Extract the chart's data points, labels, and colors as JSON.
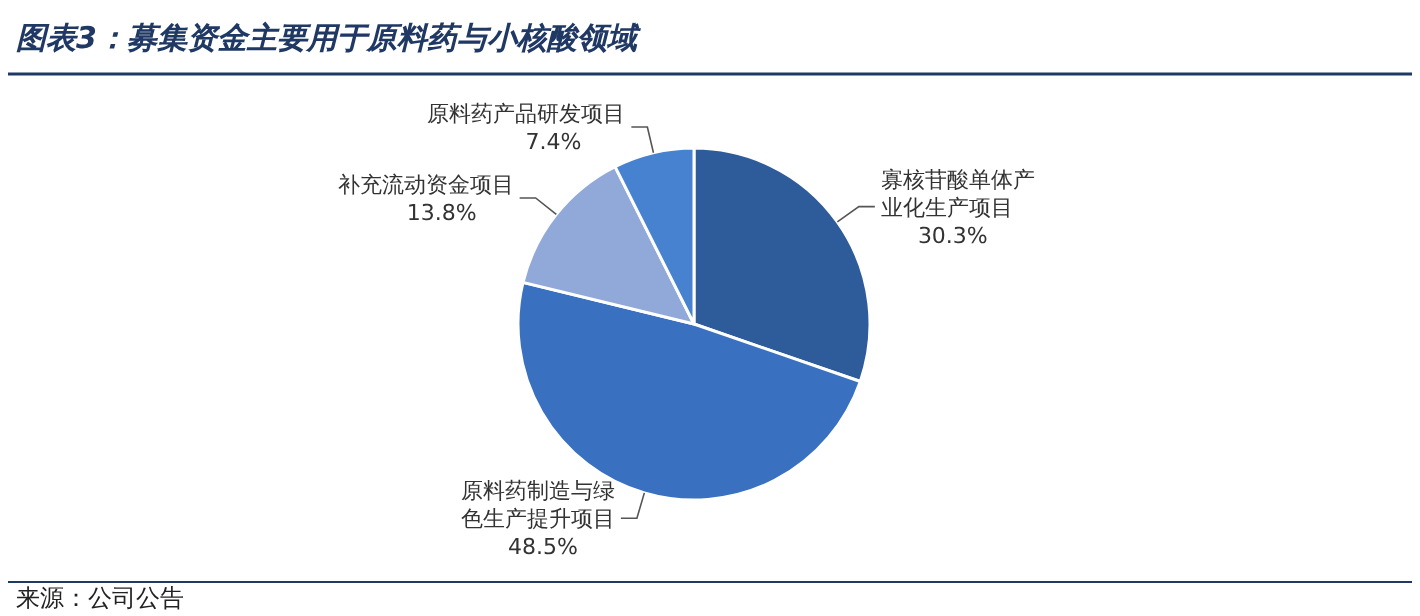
{
  "chart_data": {
    "type": "pie",
    "title": "图表3：募集资金主要用于原料药与小核酸领域",
    "categories": [
      "寡核苷酸单体产业化生产项目",
      "原料药制造与绿色生产提升项目",
      "补充流动资金项目",
      "原料药产品研发项目"
    ],
    "values": [
      30.3,
      48.5,
      13.8,
      7.4
    ],
    "colors": [
      "#2e5b9a",
      "#3a70c0",
      "#91a9d9",
      "#4682d0"
    ],
    "value_labels": [
      "30.3%",
      "48.5%",
      "13.8%",
      "7.4%"
    ],
    "annotations": [
      "来源：公司公告"
    ]
  }
}
